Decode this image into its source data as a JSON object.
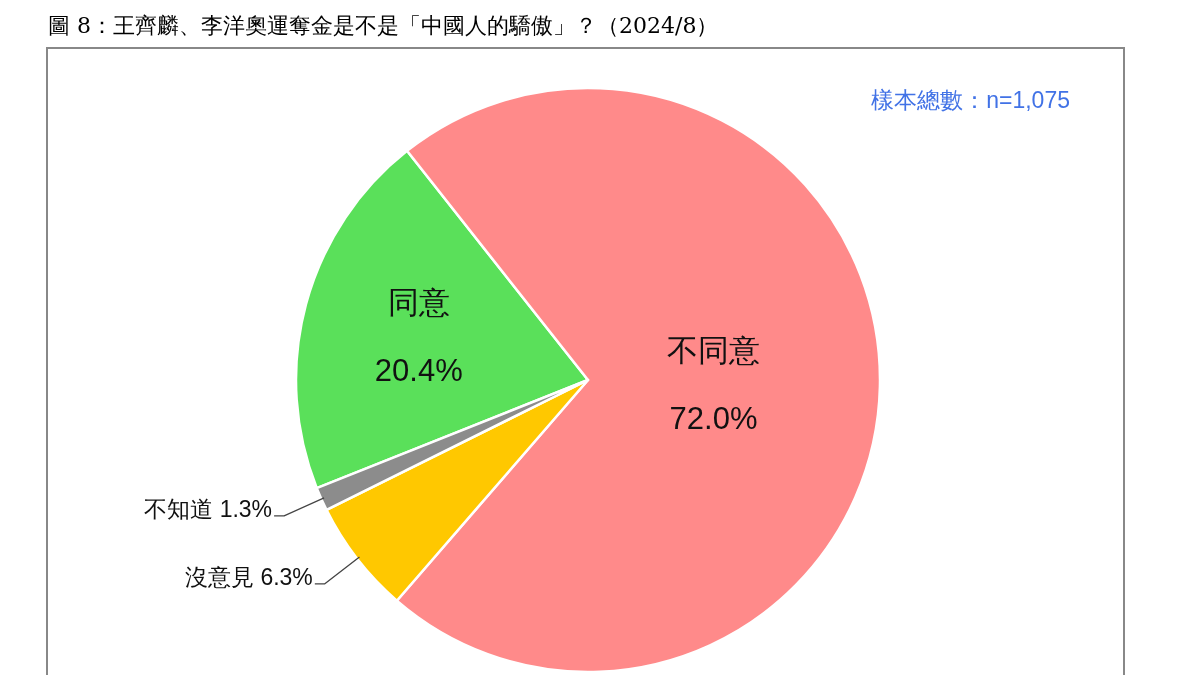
{
  "chart_data": {
    "type": "pie",
    "title": "圖 8：王齊麟、李洋奧運奪金是不是「中國人的驕傲」？（2024/8）",
    "categories": [
      "同意",
      "不同意",
      "沒意見",
      "不知道"
    ],
    "values": [
      20.4,
      72.0,
      6.3,
      1.3
    ],
    "colors": [
      "#5ae05a",
      "#ff8a8a",
      "#ffc800",
      "#8c8c8c"
    ],
    "value_labels": [
      "20.4%",
      "72.0%",
      "6.3%",
      "1.3%"
    ],
    "annotations": [
      "樣本總數：n=1,075"
    ]
  }
}
